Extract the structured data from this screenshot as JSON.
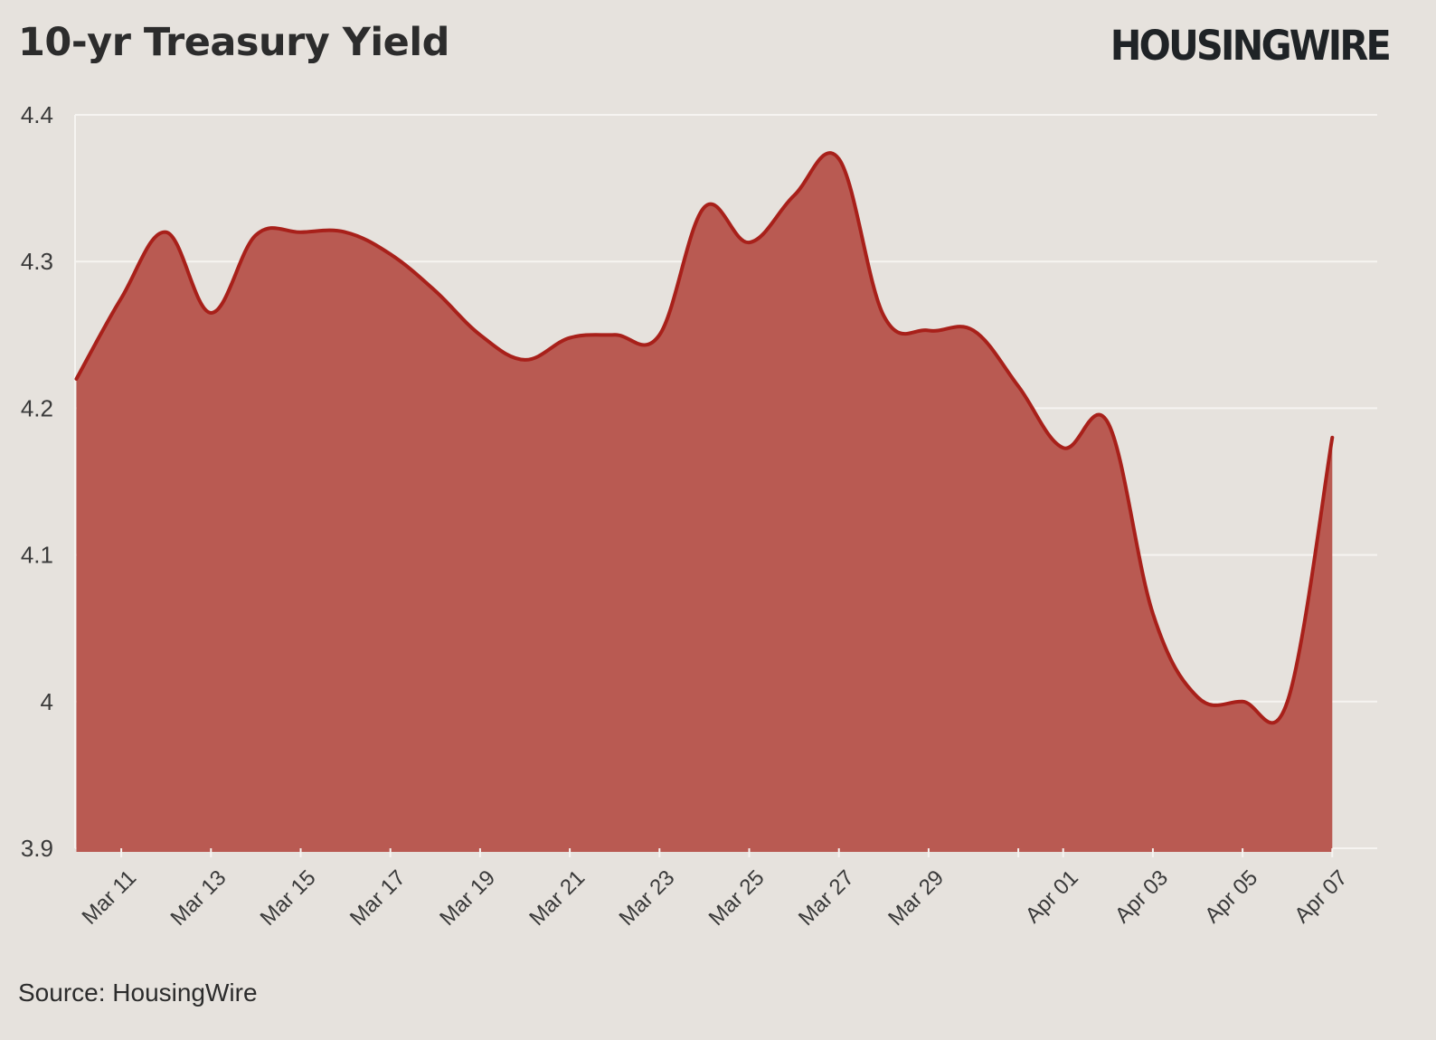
{
  "header": {
    "title": "10-yr Treasury Yield",
    "logo_text": "HOUSINGWIRE"
  },
  "footer": {
    "source": "Source: HousingWire"
  },
  "colors": {
    "background": "#e6e2dd",
    "area_fill": "#b95a52",
    "line": "#a8201a",
    "grid": "#f6f4f1",
    "text": "#2c2c2c"
  },
  "chart_data": {
    "type": "area",
    "title": "10-yr Treasury Yield",
    "xlabel": "",
    "ylabel": "",
    "ylim": [
      3.9,
      4.4
    ],
    "y_ticks": [
      4.4,
      4.3,
      4.2,
      4.1,
      4,
      3.9
    ],
    "y_tick_labels": [
      "4.4",
      "4.3",
      "4.2",
      "4.1",
      "4",
      "3.9"
    ],
    "x_tick_labels": [
      "Mar 11",
      "Mar 13",
      "Mar 15",
      "Mar 17",
      "Mar 19",
      "Mar 21",
      "Mar 23",
      "Mar 25",
      "Mar 27",
      "Mar 29",
      "Apr 01",
      "Apr 03",
      "Apr 05",
      "Apr 07"
    ],
    "x_tick_days": [
      1,
      3,
      5,
      7,
      9,
      11,
      13,
      15,
      17,
      19,
      22,
      24,
      26,
      28
    ],
    "x_minor_tick_days": [
      21
    ],
    "x_domain_days": [
      0,
      29
    ],
    "series": [
      {
        "name": "10-yr Treasury Yield",
        "x_days": [
          0,
          1,
          2,
          3,
          4,
          5,
          6,
          7,
          8,
          9,
          10,
          11,
          12,
          13,
          14,
          15,
          16,
          17,
          18,
          19,
          20,
          21,
          22,
          23,
          24,
          25,
          26,
          27,
          28
        ],
        "values": [
          4.22,
          4.275,
          4.32,
          4.265,
          4.318,
          4.32,
          4.32,
          4.305,
          4.28,
          4.25,
          4.233,
          4.248,
          4.25,
          4.25,
          4.337,
          4.313,
          4.345,
          4.37,
          4.263,
          4.253,
          4.253,
          4.215,
          4.173,
          4.19,
          4.06,
          4.003,
          4.0,
          4.0,
          4.18
        ]
      }
    ]
  }
}
